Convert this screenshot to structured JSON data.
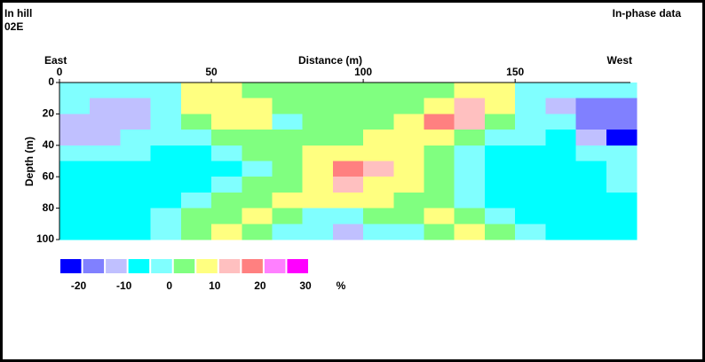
{
  "header": {
    "site": "In hill",
    "line": "02E",
    "title": "In-phase data"
  },
  "chart_data": {
    "type": "heatmap",
    "x_label": "Distance (m)",
    "y_label": "Depth (m)",
    "left_label": "East",
    "right_label": "West",
    "x": [
      5,
      15,
      25,
      35,
      45,
      55,
      65,
      75,
      85,
      95,
      105,
      115,
      125,
      135,
      145,
      155,
      165,
      175,
      185
    ],
    "y": [
      5,
      15,
      25,
      35,
      45,
      55,
      65,
      75,
      85,
      95
    ],
    "xlim": [
      0,
      190
    ],
    "ylim": [
      0,
      100
    ],
    "xticks": [
      0,
      50,
      100,
      150
    ],
    "yticks": [
      0,
      20,
      40,
      60,
      80,
      100
    ],
    "y_inverted": true,
    "z": [
      [
        -2,
        -2,
        -2,
        -2,
        7,
        7,
        2,
        2,
        2,
        2,
        2,
        2,
        2,
        7,
        7,
        -2,
        -2,
        -2,
        -2
      ],
      [
        -2,
        -12,
        -12,
        -2,
        7,
        7,
        7,
        2,
        2,
        2,
        2,
        2,
        7,
        12,
        7,
        -2,
        -12,
        -17,
        -17
      ],
      [
        -12,
        -12,
        -12,
        -2,
        2,
        7,
        7,
        -2,
        2,
        2,
        2,
        7,
        17,
        12,
        2,
        -2,
        -2,
        -17,
        -17
      ],
      [
        -12,
        -12,
        -2,
        -2,
        -2,
        2,
        2,
        2,
        2,
        2,
        7,
        7,
        7,
        2,
        -2,
        -2,
        -7,
        -12,
        -22
      ],
      [
        -2,
        -2,
        -2,
        -7,
        -7,
        -2,
        2,
        2,
        7,
        7,
        7,
        7,
        2,
        -2,
        -7,
        -7,
        -7,
        -2,
        -2
      ],
      [
        -7,
        -7,
        -7,
        -7,
        -7,
        -7,
        -2,
        2,
        7,
        17,
        12,
        7,
        2,
        -2,
        -7,
        -7,
        -7,
        -7,
        -2
      ],
      [
        -7,
        -7,
        -7,
        -7,
        -7,
        -2,
        2,
        2,
        7,
        12,
        7,
        7,
        2,
        -2,
        -7,
        -7,
        -7,
        -7,
        -2
      ],
      [
        -7,
        -7,
        -7,
        -7,
        -2,
        2,
        2,
        7,
        7,
        7,
        7,
        2,
        2,
        -2,
        -7,
        -7,
        -7,
        -7,
        -7
      ],
      [
        -7,
        -7,
        -7,
        -2,
        2,
        2,
        7,
        2,
        -2,
        -2,
        2,
        2,
        7,
        2,
        -2,
        -7,
        -7,
        -7,
        -7
      ],
      [
        -7,
        -7,
        -7,
        -2,
        2,
        7,
        2,
        -2,
        -2,
        -12,
        -2,
        -2,
        2,
        7,
        2,
        -2,
        -7,
        -7,
        -7
      ]
    ],
    "colorbar": {
      "levels": [
        -25,
        -20,
        -15,
        -10,
        -5,
        0,
        5,
        10,
        15,
        20,
        25,
        30
      ],
      "colors": [
        "#0000ff",
        "#8080ff",
        "#c0c0ff",
        "#00ffff",
        "#80ffff",
        "#80ff80",
        "#ffff80",
        "#ffc0c0",
        "#ff8080",
        "#ff80ff",
        "#ff00ff"
      ],
      "ticks": [
        -20,
        -10,
        0,
        10,
        20,
        30
      ],
      "unit": "%"
    }
  }
}
